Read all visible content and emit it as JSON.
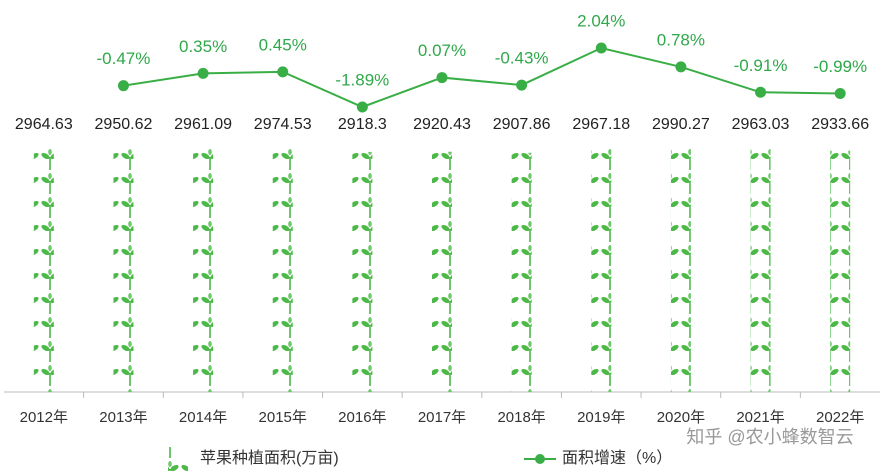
{
  "chart_data": {
    "type": "bar",
    "categories": [
      "2012年",
      "2013年",
      "2014年",
      "2015年",
      "2016年",
      "2017年",
      "2018年",
      "2019年",
      "2020年",
      "2021年",
      "2022年"
    ],
    "legend": "bottom",
    "series": [
      {
        "name": "苹果种植面积(万亩)",
        "type": "bar",
        "color": "#4cb848",
        "values": [
          2964.63,
          2950.62,
          2961.09,
          2974.53,
          2918.3,
          2920.43,
          2907.86,
          2967.18,
          2990.27,
          2963.03,
          2933.66
        ]
      },
      {
        "name": "面积增速（%）",
        "type": "line",
        "color": "#3aae46",
        "values": [
          null,
          -0.47,
          0.35,
          0.45,
          -1.89,
          0.07,
          -0.43,
          2.04,
          0.78,
          -0.91,
          -0.99
        ],
        "value_labels": [
          null,
          "-0.47%",
          "0.35%",
          "0.45%",
          "-1.89%",
          "0.07%",
          "-0.43%",
          "2.04%",
          "0.78%",
          "-0.91%",
          "-0.99%"
        ]
      }
    ]
  },
  "watermark": "知乎 @农小蜂数智云"
}
